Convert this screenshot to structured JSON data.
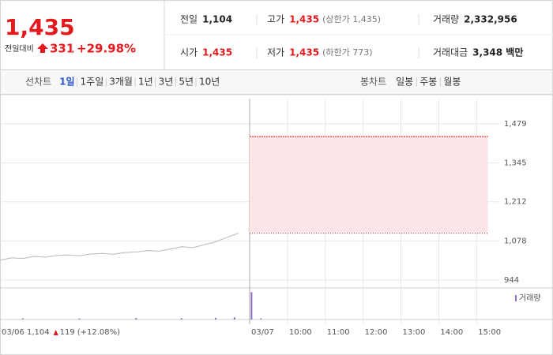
{
  "quote": {
    "price": "1,435",
    "change_label": "전일대비",
    "change": "331",
    "change_pct": "+29.98%"
  },
  "stats": [
    {
      "label": "전일",
      "value": "1,104"
    },
    {
      "label": "고가",
      "value": "1,435",
      "note": "(상한가 1,435)"
    },
    {
      "label": "거래량",
      "value": "2,332,956"
    },
    {
      "label": "시가",
      "value": "1,435"
    },
    {
      "label": "저가",
      "value": "1,435",
      "note": "(하한가 773)"
    },
    {
      "label": "거래대금",
      "value": "3,348 백만"
    }
  ],
  "tabs": {
    "line_label": "선차트",
    "line": [
      "1일",
      "1주일",
      "3개월",
      "1년",
      "3년",
      "5년",
      "10년"
    ],
    "active": 0,
    "candle_label": "봉차트",
    "candle": [
      "일봉",
      "주봉",
      "월봉"
    ]
  },
  "chart_data": {
    "type": "line",
    "xlim": [
      2.4,
      15.6
    ],
    "ylim": [
      917,
      1565
    ],
    "grid": true,
    "xticks": [
      {
        "value": 2.4,
        "label": "03/06"
      },
      {
        "value": 9,
        "label": "03/07"
      },
      {
        "value": 10,
        "label": "10:00"
      },
      {
        "value": 11,
        "label": "11:00"
      },
      {
        "value": 12,
        "label": "12:00"
      },
      {
        "value": 13,
        "label": "13:00"
      },
      {
        "value": 14,
        "label": "14:00"
      },
      {
        "value": 15,
        "label": "15:00"
      }
    ],
    "yticks": [
      {
        "value": 1479,
        "label": "1,479"
      },
      {
        "value": 1345,
        "label": "1,345"
      },
      {
        "value": 1212,
        "label": "1,212"
      },
      {
        "value": 1078,
        "label": "1,078"
      },
      {
        "value": 944,
        "label": "944"
      }
    ],
    "prev_close": 1104,
    "series": [
      {
        "color": "#b8b8b8",
        "x": [
          2.4,
          2.7,
          3.0,
          3.3,
          3.6,
          3.9,
          4.2,
          4.5,
          4.8,
          5.1,
          5.4,
          5.7,
          6.0,
          6.3,
          6.6,
          6.9,
          7.2,
          7.5,
          7.8,
          8.1,
          8.4,
          8.7
        ],
        "values": [
          1012,
          1020,
          1018,
          1025,
          1022,
          1028,
          1030,
          1027,
          1033,
          1035,
          1032,
          1038,
          1040,
          1045,
          1043,
          1050,
          1058,
          1055,
          1065,
          1075,
          1090,
          1104
        ]
      },
      {
        "color": "#f03a3a",
        "x": [
          9,
          15.3
        ],
        "values": [
          1435,
          1435
        ]
      }
    ],
    "volume": {
      "name": "거래량",
      "color": "#8a6fc4",
      "ylim": [
        0,
        1600000
      ],
      "x": [
        3.0,
        4.5,
        6.0,
        7.2,
        8.1,
        8.6,
        9.05,
        9.3
      ],
      "values": [
        60000,
        50000,
        80000,
        70000,
        90000,
        120000,
        1500000,
        60000
      ]
    }
  },
  "footer": {
    "close": "1,104",
    "change": "119",
    "change_pct": "(+12.08%)"
  }
}
